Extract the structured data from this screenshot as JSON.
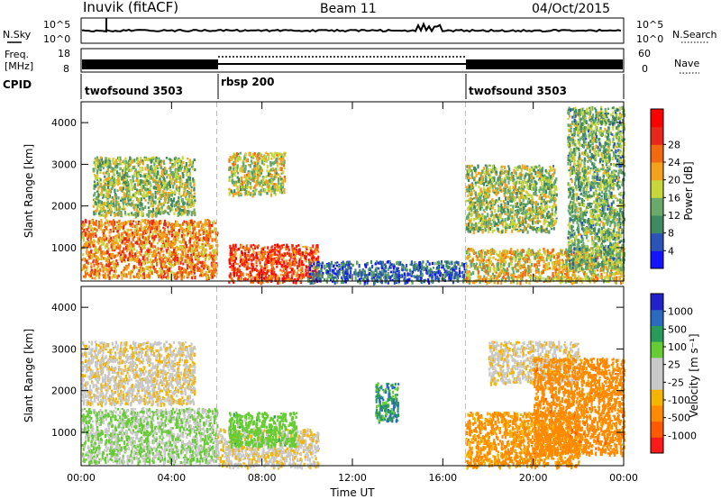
{
  "header": {
    "station": "Inuvik (fitACF)",
    "beam": "Beam 11",
    "date": "04/Oct/2015"
  },
  "noise_panel": {
    "left_label": "N.Sky",
    "right_label": "N.Search",
    "left_ticks": [
      "10^5",
      "10^0"
    ],
    "right_ticks": [
      "10^5",
      "10^0"
    ]
  },
  "freq_panel": {
    "left_label_1": "Freq.",
    "left_label_2": "[MHz]",
    "right_label": "Nave",
    "left_ticks": [
      "18",
      "8"
    ],
    "right_ticks": [
      "60",
      "0"
    ],
    "freq_range_mhz": [
      8,
      18
    ],
    "nave_range": [
      0,
      60
    ]
  },
  "cpid_panel": {
    "label": "CPID",
    "segments": [
      {
        "name": "twofsound 3503",
        "start_hour": 0,
        "end_hour": 6
      },
      {
        "name": "rbsp 200",
        "start_hour": 6,
        "end_hour": 17
      },
      {
        "name": "twofsound 3503",
        "start_hour": 17,
        "end_hour": 24
      }
    ]
  },
  "colors": {
    "power_scale": [
      "#1414ff",
      "#2b54b8",
      "#3f8a60",
      "#69aa6b",
      "#c7d63a",
      "#f4a21e",
      "#f26a10",
      "#e8281a",
      "#ff0000"
    ],
    "velocity_scale": [
      "#ff1a1a",
      "#ff5a00",
      "#ff8a00",
      "#f4b400",
      "#c8c8c8",
      "#c8c8c8",
      "#66cc33",
      "#2a9a5a",
      "#2a6abf",
      "#2222cc"
    ]
  },
  "chart_data": [
    {
      "type": "heatmap",
      "title": "",
      "xlabel": "Time UT",
      "ylabel": "Slant Range [km]",
      "xlim": [
        0,
        24
      ],
      "ylim": [
        200,
        4500
      ],
      "x_ticks": [
        "00:00",
        "04:00",
        "08:00",
        "12:00",
        "16:00",
        "20:00",
        "00:00"
      ],
      "y_ticks": [
        "1000",
        "2000",
        "3000",
        "4000"
      ],
      "colorbar_label": "Power [dB]",
      "colorbar_ticks": [
        "4",
        "8",
        "12",
        "16",
        "20",
        "24",
        "28"
      ],
      "mode_change_hours": [
        6,
        17
      ],
      "scatter_regions": [
        {
          "t": [
            0.0,
            6.0
          ],
          "range_km": [
            300,
            1700
          ],
          "power_db": 24
        },
        {
          "t": [
            0.5,
            5.0
          ],
          "range_km": [
            1800,
            3200
          ],
          "power_db": 16
        },
        {
          "t": [
            6.5,
            10.5
          ],
          "range_km": [
            200,
            1100
          ],
          "power_db": 28
        },
        {
          "t": [
            6.5,
            9.0
          ],
          "range_km": [
            2300,
            3300
          ],
          "power_db": 18
        },
        {
          "t": [
            10.0,
            17.0
          ],
          "range_km": [
            200,
            700
          ],
          "power_db": 8
        },
        {
          "t": [
            17.0,
            21.0
          ],
          "range_km": [
            1400,
            3000
          ],
          "power_db": 16
        },
        {
          "t": [
            17.0,
            24.0
          ],
          "range_km": [
            200,
            1000
          ],
          "power_db": 20
        },
        {
          "t": [
            21.5,
            24.0
          ],
          "range_km": [
            500,
            4400
          ],
          "power_db": 14
        }
      ]
    },
    {
      "type": "heatmap",
      "title": "",
      "xlabel": "Time UT",
      "ylabel": "Slant Range [km]",
      "xlim": [
        0,
        24
      ],
      "ylim": [
        200,
        4500
      ],
      "x_ticks": [
        "00:00",
        "04:00",
        "08:00",
        "12:00",
        "16:00",
        "20:00",
        "00:00"
      ],
      "y_ticks": [
        "1000",
        "2000",
        "3000",
        "4000"
      ],
      "colorbar_label": "Velocity [m s⁻¹]",
      "colorbar_ticks": [
        "1000",
        "500",
        "100",
        "25",
        "-25",
        "-100",
        "-500",
        "-1000"
      ],
      "mode_change_hours": [
        6,
        17
      ],
      "scatter_regions": [
        {
          "t": [
            0.0,
            6.0
          ],
          "range_km": [
            300,
            1600
          ],
          "velocity": 100
        },
        {
          "t": [
            0.0,
            5.0
          ],
          "range_km": [
            1700,
            3200
          ],
          "velocity": 0
        },
        {
          "t": [
            6.0,
            10.5
          ],
          "range_km": [
            200,
            1100
          ],
          "velocity": 0
        },
        {
          "t": [
            6.5,
            9.5
          ],
          "range_km": [
            700,
            1500
          ],
          "velocity": 300
        },
        {
          "t": [
            13.0,
            14.0
          ],
          "range_km": [
            1300,
            2200
          ],
          "velocity": 800
        },
        {
          "t": [
            17.0,
            22.0
          ],
          "range_km": [
            200,
            1500
          ],
          "velocity": -150
        },
        {
          "t": [
            18.0,
            22.0
          ],
          "range_km": [
            2200,
            3200
          ],
          "velocity": 0
        },
        {
          "t": [
            20.0,
            24.0
          ],
          "range_km": [
            500,
            2800
          ],
          "velocity": -300
        }
      ]
    }
  ]
}
